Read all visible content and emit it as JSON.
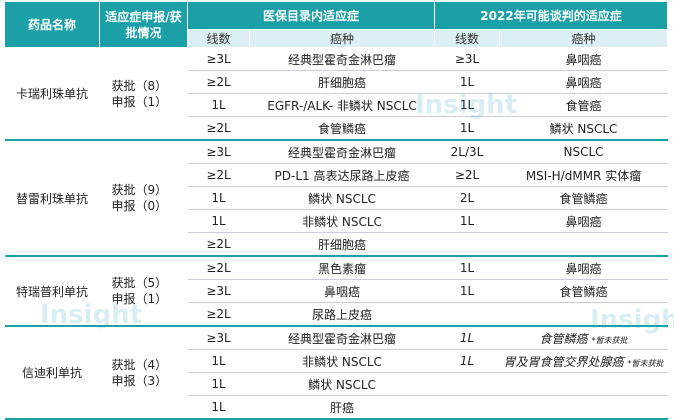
{
  "header": {
    "drug": "药品名称",
    "status": "适应症申报/获批情况",
    "group1": "医保目录内适应症",
    "group2": "2022年可能谈判的适应症",
    "line": "线数",
    "cancer": "癌种"
  },
  "watermark": "Insight",
  "drugs": [
    {
      "name": "卡瑞利珠单抗",
      "status": [
        "获批（8）",
        "申报（1）"
      ],
      "rows": [
        {
          "l1": "≥3L",
          "c1": "经典型霍奇金淋巴瘤",
          "l2": "≥3L",
          "c2": "鼻咽癌"
        },
        {
          "l1": "≥2L",
          "c1": "肝细胞癌",
          "l2": "1L",
          "c2": "鼻咽癌"
        },
        {
          "l1": "1L",
          "c1": "EGFR-/ALK- 非鳞状 NSCLC",
          "l2": "1L",
          "c2": "食管癌"
        },
        {
          "l1": "≥2L",
          "c1": "食管鳞癌",
          "l2": "1L",
          "c2": "鳞状 NSCLC"
        }
      ]
    },
    {
      "name": "替雷利珠单抗",
      "status": [
        "获批（9）",
        "申报（0）"
      ],
      "rows": [
        {
          "l1": "≥3L",
          "c1": "经典型霍奇金淋巴瘤",
          "l2": "2L/3L",
          "c2": "NSCLC"
        },
        {
          "l1": "≥2L",
          "c1": "PD-L1 高表达尿路上皮癌",
          "l2": "≥2L",
          "c2": "MSI-H/dMMR 实体瘤"
        },
        {
          "l1": "1L",
          "c1": "鳞状 NSCLC",
          "l2": "2L",
          "c2": "食管鳞癌"
        },
        {
          "l1": "1L",
          "c1": "非鳞状 NSCLC",
          "l2": "1L",
          "c2": "鼻咽癌"
        },
        {
          "l1": "≥2L",
          "c1": "肝细胞癌"
        }
      ]
    },
    {
      "name": "特瑞普利单抗",
      "status": [
        "获批（5）",
        "申报（1）"
      ],
      "rows": [
        {
          "l1": "≥2L",
          "c1": "黑色素瘤",
          "l2": "1L",
          "c2": "鼻咽癌"
        },
        {
          "l1": "≥3L",
          "c1": "鼻咽癌",
          "l2": "1L",
          "c2": "食管鳞癌"
        },
        {
          "l1": "≥2L",
          "c1": "尿路上皮癌"
        }
      ]
    },
    {
      "name": "信迪利单抗",
      "status": [
        "获批（4）",
        "申报（3）"
      ],
      "rows": [
        {
          "l1": "≥3L",
          "c1": "经典型霍奇金淋巴瘤",
          "l2": "1L",
          "c2": "食管鳞癌",
          "note": "*暂未获批"
        },
        {
          "l1": "1L",
          "c1": "非鳞状 NSCLC",
          "l2": "1L",
          "c2": "胃及胃食管交界处腺癌",
          "note": "*暂未获批"
        },
        {
          "l1": "1L",
          "c1": "鳞状 NSCLC"
        },
        {
          "l1": "1L",
          "c1": "肝癌"
        }
      ]
    }
  ]
}
